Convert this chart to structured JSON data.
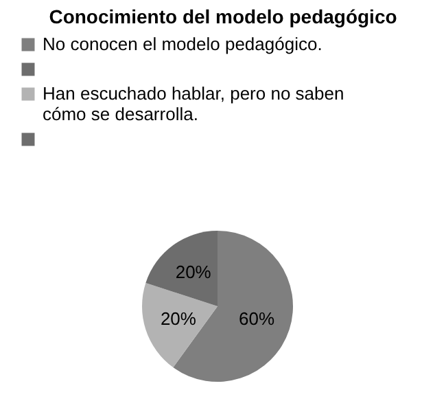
{
  "chart_data": {
    "type": "pie",
    "title": "Conocimiento del modelo pedagógico",
    "categories": [
      "No conocen el modelo pedagógico.",
      null,
      "Han escuchado hablar, pero no saben cómo se desarrolla.",
      null
    ],
    "values": [
      60,
      0,
      20,
      20
    ],
    "value_labels": [
      "60%",
      null,
      "20%",
      "20%"
    ],
    "colors": [
      "#7f7f7f",
      "#6d6d6d",
      "#b3b3b3",
      "#6d6d6d"
    ],
    "legend": "top left"
  }
}
